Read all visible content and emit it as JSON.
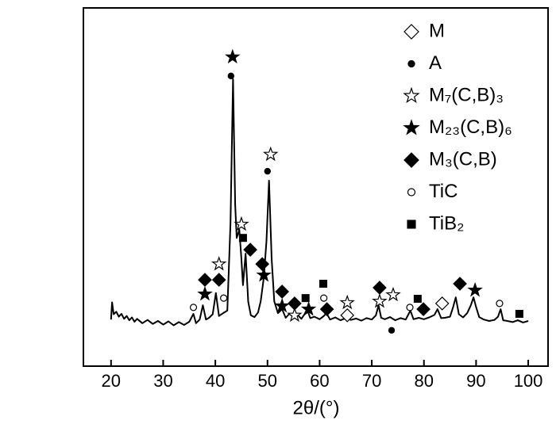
{
  "chart_data": {
    "type": "line",
    "xlabel": "2θ/(°)",
    "xlim": [
      14.7,
      103.8
    ],
    "xticks": [
      20,
      30,
      40,
      50,
      60,
      70,
      80,
      90,
      100
    ],
    "ylim": [
      0,
      100
    ],
    "color": "#000000",
    "x": [
      20,
      20.2,
      20.5,
      21,
      21.5,
      22,
      22.5,
      23,
      23.5,
      24,
      24.5,
      25,
      26,
      27,
      28,
      29,
      30,
      31,
      32,
      33,
      34,
      35,
      35.8,
      36.3,
      37,
      37.6,
      38.2,
      38.8,
      39.5,
      40.1,
      40.7,
      41.5,
      42.3,
      42.9,
      43.4,
      43.8,
      44.1,
      44.6,
      45.0,
      45.3,
      45.8,
      46.3,
      46.8,
      47.5,
      48.2,
      48.7,
      49.3,
      49.8,
      50.3,
      50.8,
      51.3,
      52,
      52.8,
      53.5,
      54.2,
      55,
      55.8,
      56.5,
      57.1,
      57.6,
      58.2,
      59,
      60,
      60.8,
      61.3,
      62,
      63,
      64,
      65,
      66,
      67,
      68,
      69,
      70,
      70.8,
      71.3,
      71.8,
      72.5,
      73.5,
      74.5,
      75.5,
      76.5,
      77.4,
      78,
      79,
      80,
      81,
      82,
      82.6,
      83.3,
      84,
      85,
      85.6,
      86.1,
      86.7,
      87.5,
      88.3,
      89,
      89.5,
      90,
      90.6,
      91.5,
      92.5,
      93.5,
      94.2,
      94.7,
      95.2,
      96,
      97,
      98,
      99,
      100
    ],
    "values": [
      13.0,
      17.8,
      14.5,
      15.2,
      13.8,
      14.6,
      13.2,
      14.0,
      12.8,
      13.6,
      12.4,
      13.2,
      12.0,
      12.9,
      11.8,
      12.6,
      11.6,
      12.5,
      11.4,
      12.3,
      11.5,
      12.4,
      14.6,
      12.0,
      13.0,
      17.0,
      13.0,
      13.5,
      14.5,
      20.4,
      14.0,
      14.8,
      15.5,
      40.0,
      80.1,
      45.0,
      35.8,
      38.1,
      30.0,
      22.6,
      31.4,
      18.0,
      14.2,
      13.7,
      15.0,
      18.1,
      24.8,
      35.0,
      51.8,
      30.0,
      18.1,
      14.8,
      15.9,
      13.5,
      14.6,
      13.7,
      14.3,
      13.2,
      14.5,
      15.9,
      13.4,
      13.8,
      13.1,
      14.0,
      14.8,
      13.0,
      13.6,
      12.8,
      13.4,
      12.9,
      13.3,
      12.7,
      13.4,
      13.0,
      14.2,
      17.0,
      13.5,
      13.1,
      13.7,
      12.8,
      13.4,
      13.0,
      15.5,
      13.1,
      13.5,
      13.1,
      13.6,
      14.3,
      15.9,
      13.4,
      13.5,
      13.8,
      16.5,
      19.2,
      14.5,
      13.6,
      14.8,
      17.0,
      19.2,
      16.5,
      13.7,
      13.0,
      12.6,
      12.9,
      13.8,
      15.9,
      12.8,
      12.6,
      12.3,
      12.8,
      12.2,
      12.6
    ],
    "series": [
      {
        "name": "M",
        "marker": "diamond-open",
        "color": "#000000",
        "x": [
          65.3,
          83.5
        ],
        "values": [
          14.2,
          17.5
        ]
      },
      {
        "name": "A",
        "marker": "circle-filled",
        "color": "#000000",
        "x": [
          43.0,
          50.0,
          73.8
        ],
        "values": [
          81.0,
          54.4,
          10.0
        ]
      },
      {
        "name": "M₇(C,B)₃",
        "marker": "star-open",
        "color": "#000000",
        "x": [
          40.7,
          45.0,
          50.6,
          55.2,
          65.3,
          71.5,
          74.1
        ],
        "values": [
          28.5,
          39.6,
          59.1,
          14.2,
          17.7,
          18.1,
          19.9
        ]
      },
      {
        "name": "M₂₃(C,B)₆",
        "marker": "star-filled",
        "color": "#000000",
        "x": [
          43.3,
          38.0,
          49.3,
          52.8,
          57.9,
          89.8
        ],
        "values": [
          86.3,
          20.1,
          25.4,
          16.8,
          15.9,
          21.2
        ]
      },
      {
        "name": "M₃(C,B)",
        "marker": "diamond-filled",
        "color": "#000000",
        "x": [
          38.0,
          40.7,
          46.7,
          49.0,
          52.8,
          55.2,
          61.4,
          71.5,
          79.9,
          86.9
        ],
        "values": [
          24.1,
          24.1,
          32.5,
          28.5,
          20.8,
          17.5,
          15.9,
          21.9,
          15.9,
          23.0
        ]
      },
      {
        "name": "TiC",
        "marker": "circle-open",
        "color": "#000000",
        "x": [
          35.8,
          41.6,
          60.8,
          77.3,
          94.5
        ],
        "values": [
          16.4,
          19.0,
          19.0,
          16.4,
          17.5
        ]
      },
      {
        "name": "TiB₂",
        "marker": "square-filled",
        "color": "#000000",
        "x": [
          45.3,
          57.3,
          60.7,
          78.8,
          98.3
        ],
        "values": [
          35.8,
          19.0,
          23.0,
          18.8,
          14.6
        ]
      }
    ]
  }
}
